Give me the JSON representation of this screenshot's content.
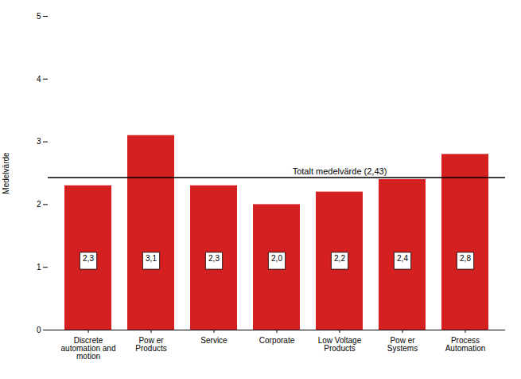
{
  "chart_data": {
    "type": "bar",
    "categories": [
      "Discrete\nautomation and\nmotion",
      "Pow er\nProducts",
      "Service",
      "Corporate",
      "Low Voltage\nProducts",
      "Pow er\nSystems",
      "Process\nAutomation"
    ],
    "values": [
      2.3,
      3.1,
      2.3,
      2.0,
      2.2,
      2.4,
      2.8
    ],
    "value_labels": [
      "2,3",
      "3,1",
      "2,3",
      "2,0",
      "2,2",
      "2,4",
      "2,8"
    ],
    "data_labels": true,
    "color": "#d42020",
    "ylabel": "Medelvärde",
    "ylim": [
      0,
      5
    ],
    "yticks": [
      0,
      1,
      2,
      3,
      4,
      5
    ],
    "grid": false,
    "reference_line": {
      "value": 2.43,
      "label": "Totalt medelvärde (2,43)"
    }
  }
}
